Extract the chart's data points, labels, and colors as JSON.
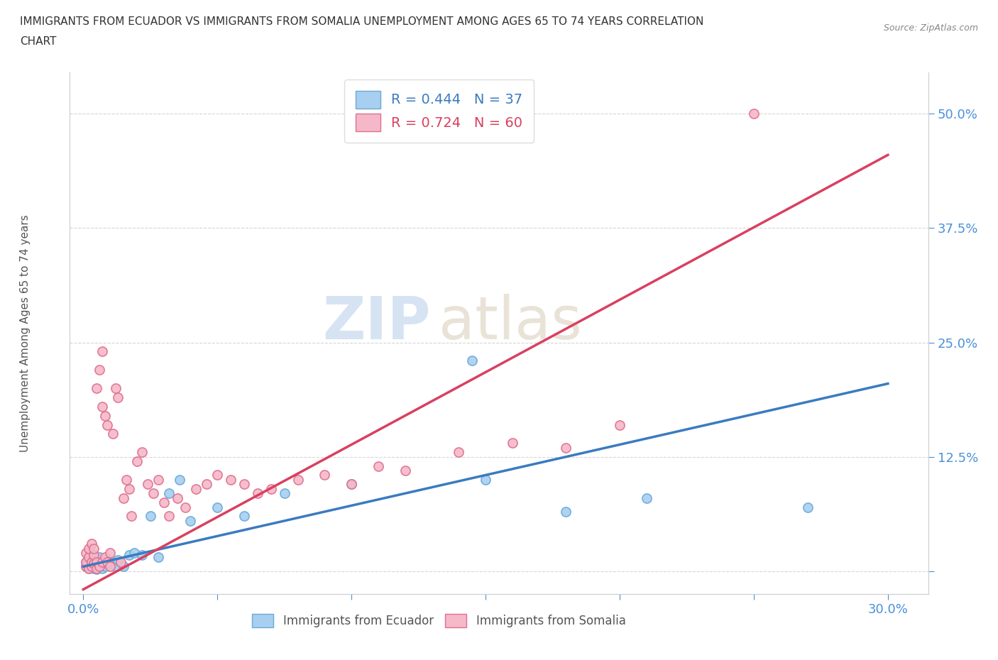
{
  "title_line1": "IMMIGRANTS FROM ECUADOR VS IMMIGRANTS FROM SOMALIA UNEMPLOYMENT AMONG AGES 65 TO 74 YEARS CORRELATION",
  "title_line2": "CHART",
  "source": "Source: ZipAtlas.com",
  "ylabel": "Unemployment Among Ages 65 to 74 years",
  "x_ticks": [
    0.0,
    0.05,
    0.1,
    0.15,
    0.2,
    0.25,
    0.3
  ],
  "x_tick_labels": [
    "0.0%",
    "",
    "",
    "",
    "",
    "",
    "30.0%"
  ],
  "y_ticks": [
    0.0,
    0.125,
    0.25,
    0.375,
    0.5
  ],
  "y_tick_labels": [
    "",
    "12.5%",
    "25.0%",
    "37.5%",
    "50.0%"
  ],
  "xlim": [
    -0.005,
    0.315
  ],
  "ylim": [
    -0.025,
    0.545
  ],
  "ecuador_color": "#a8cff0",
  "somalia_color": "#f5b8c8",
  "ecuador_edge": "#6aaad8",
  "somalia_edge": "#e07090",
  "trend_ecuador_color": "#3a7bbf",
  "trend_somalia_color": "#d94060",
  "ecuador_R": 0.444,
  "ecuador_N": 37,
  "somalia_R": 0.724,
  "somalia_N": 60,
  "watermark_zip": "ZIP",
  "watermark_atlas": "atlas",
  "grid_color": "#cccccc",
  "background_color": "#ffffff",
  "ecuador_x": [
    0.001,
    0.001,
    0.002,
    0.002,
    0.003,
    0.003,
    0.004,
    0.004,
    0.005,
    0.005,
    0.006,
    0.006,
    0.007,
    0.008,
    0.009,
    0.01,
    0.011,
    0.012,
    0.013,
    0.015,
    0.017,
    0.019,
    0.022,
    0.025,
    0.028,
    0.032,
    0.036,
    0.04,
    0.05,
    0.06,
    0.075,
    0.1,
    0.15,
    0.18,
    0.21,
    0.145,
    0.27
  ],
  "ecuador_y": [
    0.005,
    0.01,
    0.003,
    0.008,
    0.005,
    0.012,
    0.003,
    0.007,
    0.002,
    0.01,
    0.005,
    0.015,
    0.003,
    0.005,
    0.008,
    0.01,
    0.008,
    0.005,
    0.012,
    0.005,
    0.018,
    0.02,
    0.018,
    0.06,
    0.015,
    0.085,
    0.1,
    0.055,
    0.07,
    0.06,
    0.085,
    0.095,
    0.1,
    0.065,
    0.08,
    0.23,
    0.07
  ],
  "somalia_x": [
    0.001,
    0.001,
    0.001,
    0.002,
    0.002,
    0.002,
    0.003,
    0.003,
    0.003,
    0.004,
    0.004,
    0.004,
    0.005,
    0.005,
    0.005,
    0.006,
    0.006,
    0.007,
    0.007,
    0.007,
    0.008,
    0.008,
    0.009,
    0.009,
    0.01,
    0.01,
    0.011,
    0.012,
    0.013,
    0.014,
    0.015,
    0.016,
    0.017,
    0.018,
    0.02,
    0.022,
    0.024,
    0.026,
    0.028,
    0.03,
    0.032,
    0.035,
    0.038,
    0.042,
    0.046,
    0.05,
    0.055,
    0.06,
    0.065,
    0.07,
    0.08,
    0.09,
    0.1,
    0.11,
    0.12,
    0.14,
    0.16,
    0.18,
    0.2,
    0.25
  ],
  "somalia_y": [
    0.005,
    0.01,
    0.02,
    0.003,
    0.015,
    0.025,
    0.005,
    0.01,
    0.03,
    0.008,
    0.018,
    0.025,
    0.003,
    0.01,
    0.2,
    0.005,
    0.22,
    0.01,
    0.18,
    0.24,
    0.015,
    0.17,
    0.01,
    0.16,
    0.005,
    0.02,
    0.15,
    0.2,
    0.19,
    0.01,
    0.08,
    0.1,
    0.09,
    0.06,
    0.12,
    0.13,
    0.095,
    0.085,
    0.1,
    0.075,
    0.06,
    0.08,
    0.07,
    0.09,
    0.095,
    0.105,
    0.1,
    0.095,
    0.085,
    0.09,
    0.1,
    0.105,
    0.095,
    0.115,
    0.11,
    0.13,
    0.14,
    0.135,
    0.16,
    0.5
  ],
  "ecuador_trend_x": [
    0.0,
    0.3
  ],
  "ecuador_trend_y": [
    0.005,
    0.205
  ],
  "somalia_trend_x": [
    0.0,
    0.3
  ],
  "somalia_trend_y": [
    -0.02,
    0.455
  ]
}
